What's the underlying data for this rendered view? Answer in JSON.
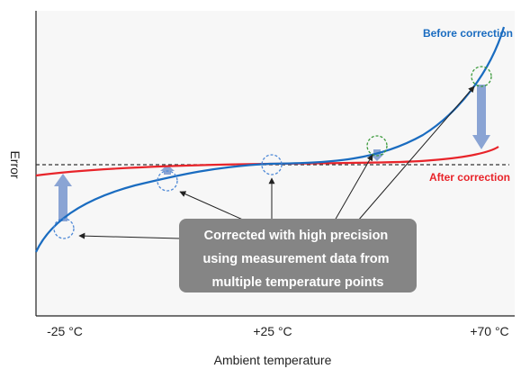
{
  "chart_data": {
    "type": "line",
    "xlabel": "Ambient temperature",
    "ylabel": "Error",
    "x_ticks": [
      "-25 °C",
      "+25 °C",
      "+70 °C"
    ],
    "series": [
      {
        "name": "Before correction",
        "color": "#1a6cc0"
      },
      {
        "name": "After correction",
        "color": "#e8242a"
      }
    ],
    "reference_line": "dashed horizontal line at zero error",
    "callout": [
      "Corrected with high precision",
      "using measurement data from",
      "multiple temperature points"
    ],
    "colors": {
      "frame_bg": "#f7f7f7",
      "correction_arrow": "#8aa4d4",
      "callout_bg": "#858585",
      "circle_blue": "#4d88d6",
      "circle_green": "#3a9a3a"
    }
  }
}
